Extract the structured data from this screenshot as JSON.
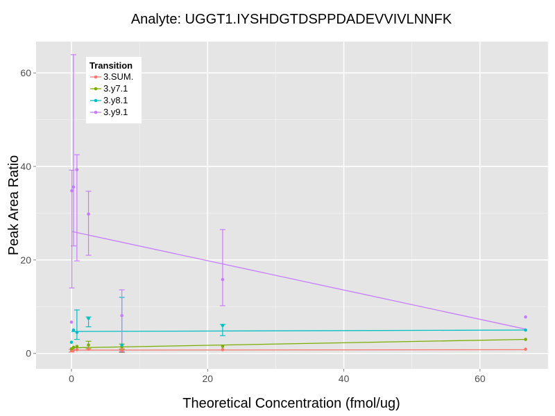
{
  "chart_data": {
    "type": "scatter",
    "title": "Analyte: UGGT1.IYSHDGTDSPPDADEVVIVLNNFK",
    "xlabel": "Theoretical Concentration (fmol/ug)",
    "ylabel": "Peak Area Ratio",
    "xlim": [
      -5.2,
      70.0
    ],
    "ylim": [
      -3.3,
      66.7
    ],
    "xticks": [
      0,
      20,
      40,
      60
    ],
    "yticks": [
      0,
      20,
      40,
      60
    ],
    "grid": true,
    "legend": {
      "title": "Transition",
      "placement": "top-left"
    },
    "series": [
      {
        "name": "3.SUM.",
        "color": "#F8766D",
        "points": [
          {
            "x": 0.0,
            "y": 0.6
          },
          {
            "x": 0.3,
            "y": 0.7
          },
          {
            "x": 0.8,
            "y": 0.8
          },
          {
            "x": 2.5,
            "y": 0.9
          },
          {
            "x": 7.4,
            "y": 0.6
          },
          {
            "x": 22.2,
            "y": 0.8
          },
          {
            "x": 66.7,
            "y": 0.9
          }
        ],
        "errors": [
          {
            "x": 0.0,
            "low": 0.3,
            "high": 0.9
          },
          {
            "x": 7.4,
            "low": 0.2,
            "high": 1.0
          }
        ],
        "fit": [
          [
            0,
            0.7
          ],
          [
            66.7,
            0.8
          ]
        ]
      },
      {
        "name": "3.y7.1",
        "color": "#7CAE00",
        "points": [
          {
            "x": 0.0,
            "y": 1.0
          },
          {
            "x": 0.3,
            "y": 1.3
          },
          {
            "x": 0.8,
            "y": 1.5
          },
          {
            "x": 2.5,
            "y": 1.8
          },
          {
            "x": 7.4,
            "y": 1.4
          },
          {
            "x": 22.2,
            "y": 1.5
          },
          {
            "x": 66.7,
            "y": 3.0
          }
        ],
        "errors": [
          {
            "x": 2.5,
            "low": 1.0,
            "high": 2.6
          },
          {
            "x": 7.4,
            "low": 0.8,
            "high": 2.0
          }
        ],
        "fit": [
          [
            0,
            1.2
          ],
          [
            66.7,
            3.0
          ]
        ]
      },
      {
        "name": "3.y8.1",
        "color": "#00BFC4",
        "points": [
          {
            "x": 0.0,
            "y": 2.4
          },
          {
            "x": 0.3,
            "y": 5.0
          },
          {
            "x": 0.8,
            "y": 4.5
          },
          {
            "x": 2.5,
            "y": 7.5
          },
          {
            "x": 7.4,
            "y": 1.8
          },
          {
            "x": 22.2,
            "y": 6.0
          },
          {
            "x": 66.7,
            "y": 5.0
          }
        ],
        "errors": [
          {
            "x": 0.8,
            "low": 3.0,
            "high": 9.3
          },
          {
            "x": 2.5,
            "low": 5.7,
            "high": 7.8
          },
          {
            "x": 7.4,
            "low": 0.3,
            "high": 12.0
          },
          {
            "x": 22.2,
            "low": 3.8,
            "high": 6.2
          }
        ],
        "fit": [
          [
            0,
            4.7
          ],
          [
            66.7,
            5.0
          ]
        ]
      },
      {
        "name": "3.y9.1",
        "color": "#C77CFF",
        "points": [
          {
            "x": 0.0,
            "y": 6.7
          },
          {
            "x": 0.05,
            "y": 34.8
          },
          {
            "x": 0.3,
            "y": 35.6
          },
          {
            "x": 0.8,
            "y": 39.3
          },
          {
            "x": 2.5,
            "y": 29.8
          },
          {
            "x": 7.4,
            "y": 8.1
          },
          {
            "x": 22.2,
            "y": 15.8
          },
          {
            "x": 66.7,
            "y": 7.8
          }
        ],
        "errors": [
          {
            "x": 0.05,
            "low": 14.0,
            "high": 39.2
          },
          {
            "x": 0.3,
            "low": 23.0,
            "high": 63.9
          },
          {
            "x": 0.8,
            "low": 19.8,
            "high": 42.5
          },
          {
            "x": 2.5,
            "low": 21.0,
            "high": 34.7
          },
          {
            "x": 7.4,
            "low": 0.4,
            "high": 13.6
          },
          {
            "x": 22.2,
            "low": 10.2,
            "high": 26.5
          }
        ],
        "fit": [
          [
            0,
            26.1
          ],
          [
            66.7,
            5.2
          ]
        ]
      }
    ]
  }
}
